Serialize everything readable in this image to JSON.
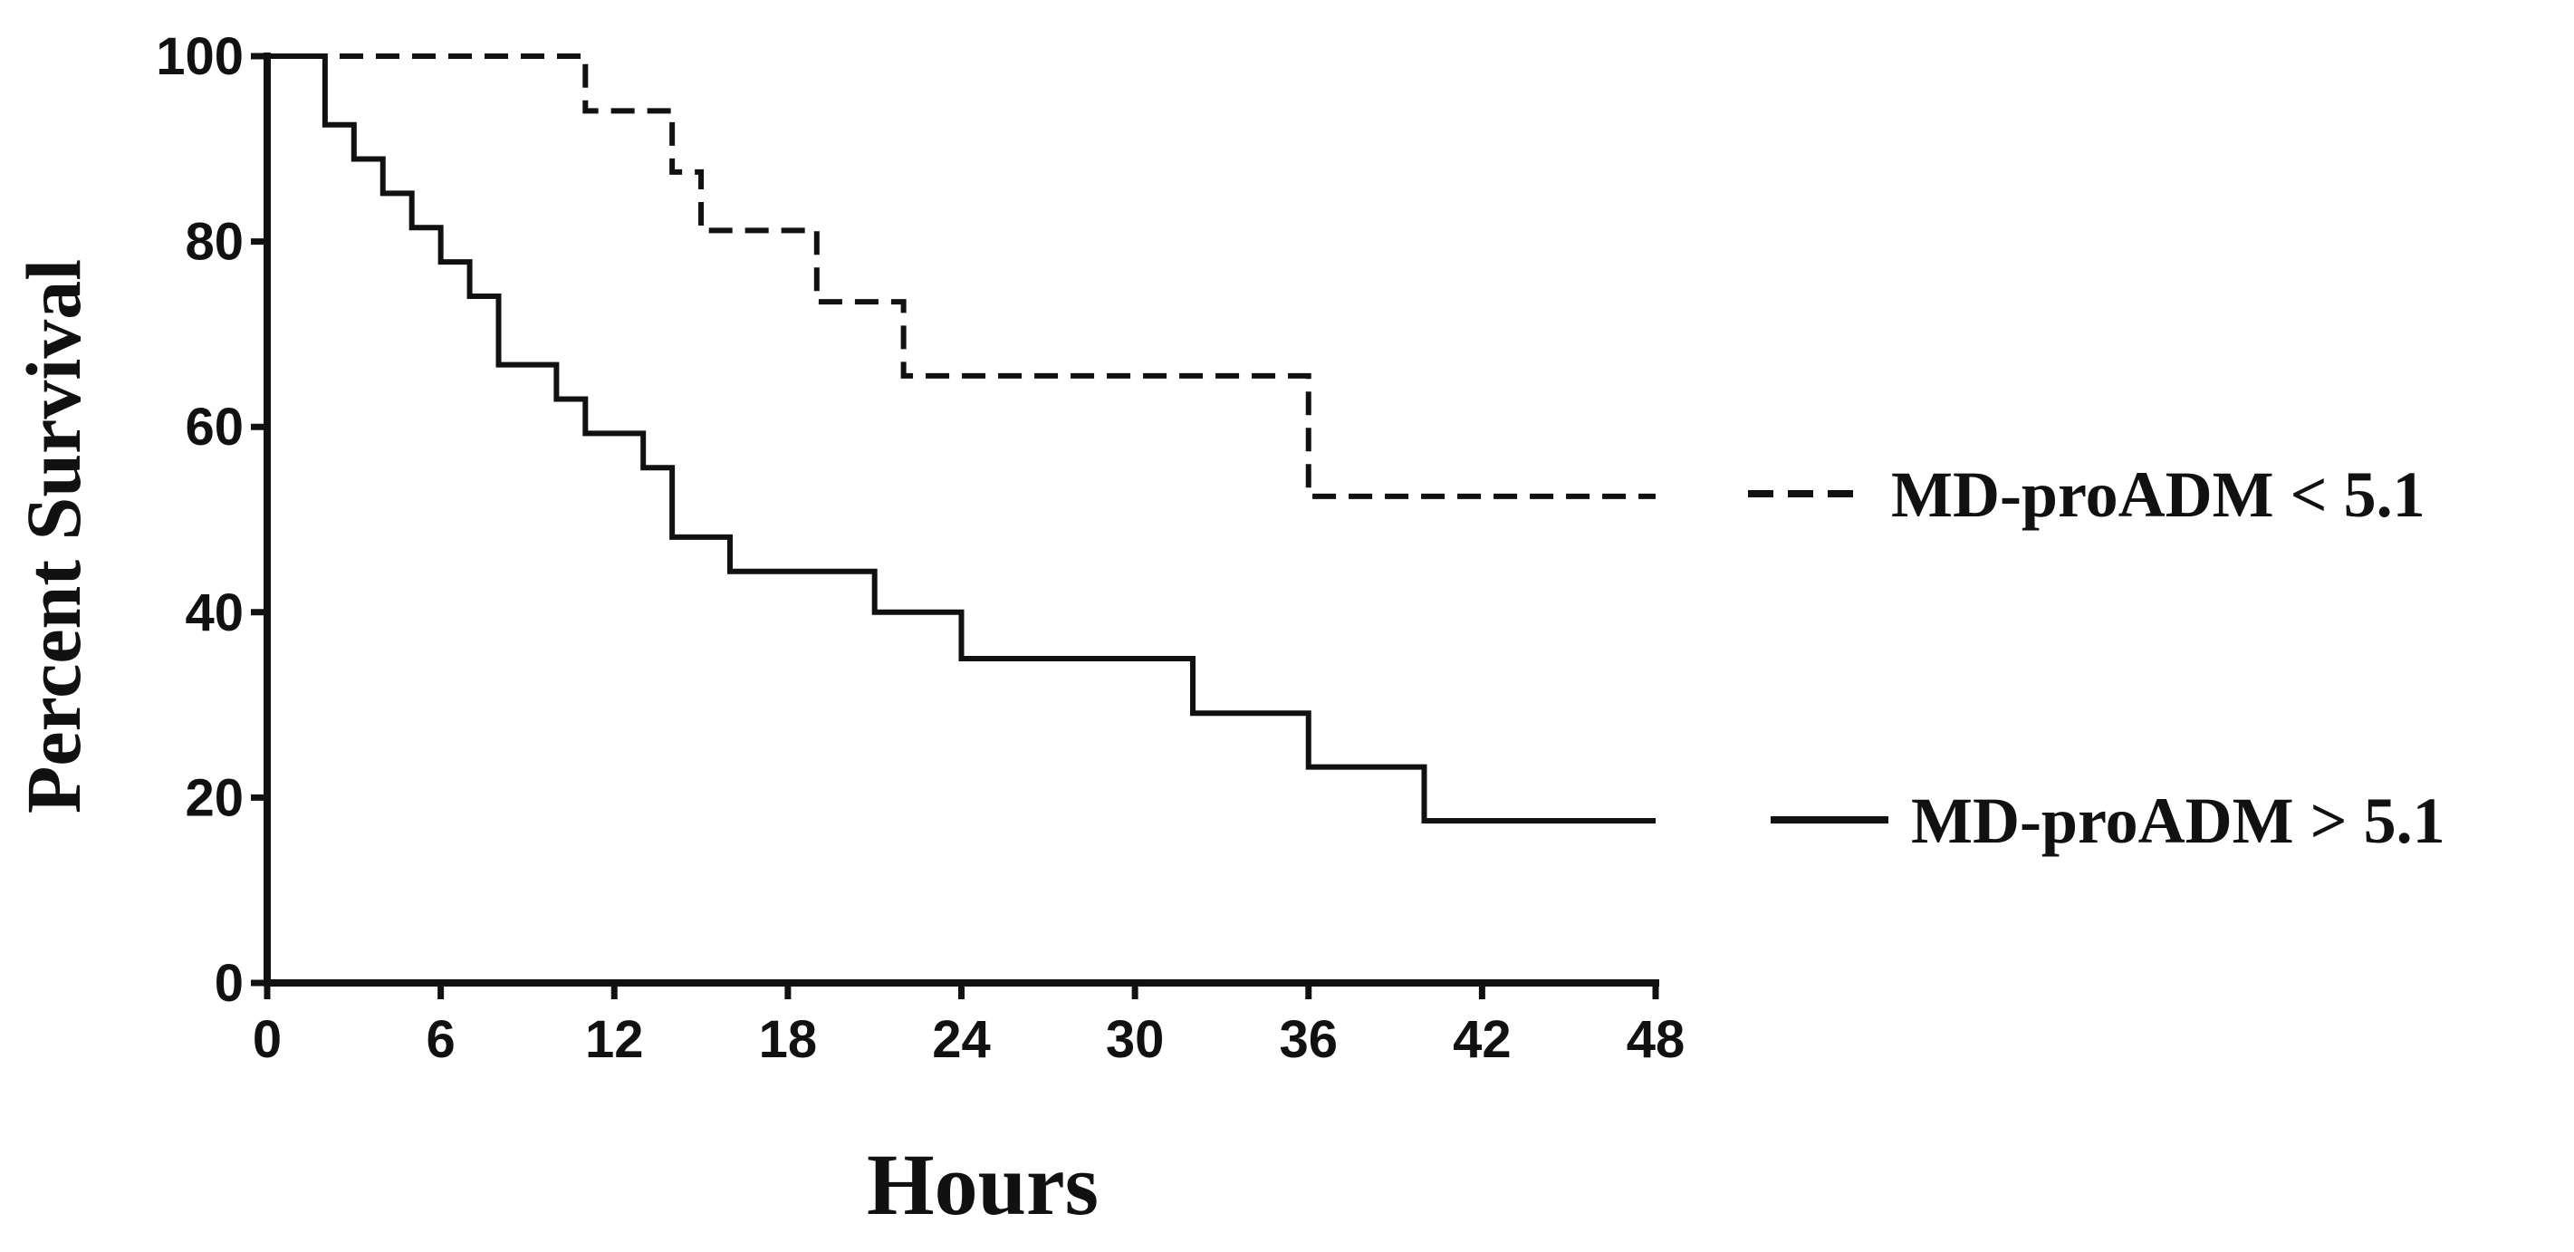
{
  "chart_data": {
    "type": "line",
    "step": true,
    "xlabel": "Hours",
    "ylabel": "Percent Survival",
    "xlim": [
      0,
      48
    ],
    "ylim": [
      0,
      100
    ],
    "x_ticks": [
      0,
      6,
      12,
      18,
      24,
      30,
      36,
      42,
      48
    ],
    "y_ticks": [
      0,
      20,
      40,
      60,
      80,
      100
    ],
    "grid": false,
    "legend_position": "right",
    "series": [
      {
        "name": "MD-proADM < 5.1",
        "line_style": "dashed",
        "color": "#111111",
        "x": [
          0,
          11,
          14,
          15,
          19,
          22,
          36,
          48
        ],
        "y": [
          100,
          94.1,
          87.5,
          81.2,
          73.5,
          65.5,
          52.5,
          52.5
        ]
      },
      {
        "name": "MD-proADM > 5.1",
        "line_style": "solid",
        "color": "#111111",
        "x": [
          0,
          2,
          3,
          4,
          5,
          6,
          7,
          8,
          10,
          11,
          13,
          14,
          16,
          21,
          24,
          32,
          36,
          40,
          48
        ],
        "y": [
          100,
          92.6,
          88.9,
          85.2,
          81.5,
          77.8,
          74.1,
          66.7,
          63.0,
          59.3,
          55.6,
          48.1,
          44.4,
          40.0,
          35.0,
          29.1,
          23.3,
          17.5,
          17.5
        ]
      }
    ]
  }
}
